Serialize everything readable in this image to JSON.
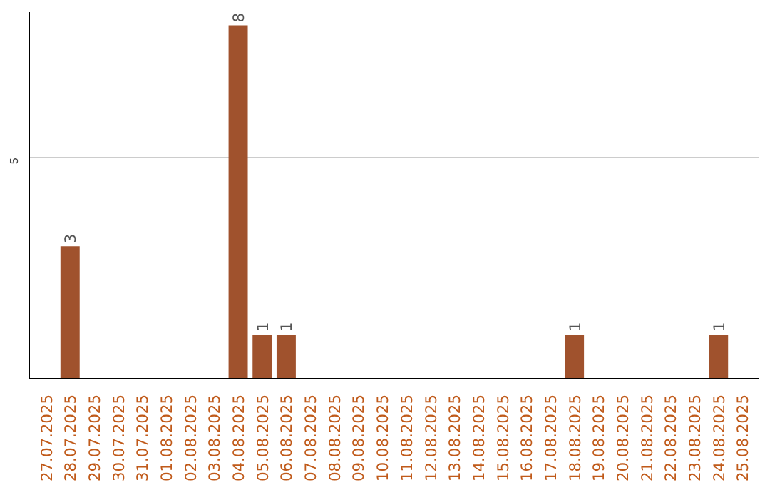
{
  "chart_data": {
    "type": "bar",
    "categories": [
      "27.07.2025",
      "28.07.2025",
      "29.07.2025",
      "30.07.2025",
      "31.07.2025",
      "01.08.2025",
      "02.08.2025",
      "03.08.2025",
      "04.08.2025",
      "05.08.2025",
      "06.08.2025",
      "07.08.2025",
      "08.08.2025",
      "09.08.2025",
      "10.08.2025",
      "11.08.2025",
      "12.08.2025",
      "13.08.2025",
      "14.08.2025",
      "15.08.2025",
      "16.08.2025",
      "17.08.2025",
      "18.08.2025",
      "19.08.2025",
      "20.08.2025",
      "21.08.2025",
      "22.08.2025",
      "23.08.2025",
      "24.08.2025",
      "25.08.2025"
    ],
    "values": [
      null,
      3,
      null,
      null,
      null,
      null,
      null,
      null,
      8,
      1,
      1,
      null,
      null,
      null,
      null,
      null,
      null,
      null,
      null,
      null,
      null,
      null,
      1,
      null,
      null,
      null,
      null,
      null,
      1,
      null
    ],
    "color": "#a0522d",
    "ylim": [
      0,
      8.3
    ],
    "yticks": [
      5
    ],
    "grid": "y",
    "data_labels": true
  }
}
